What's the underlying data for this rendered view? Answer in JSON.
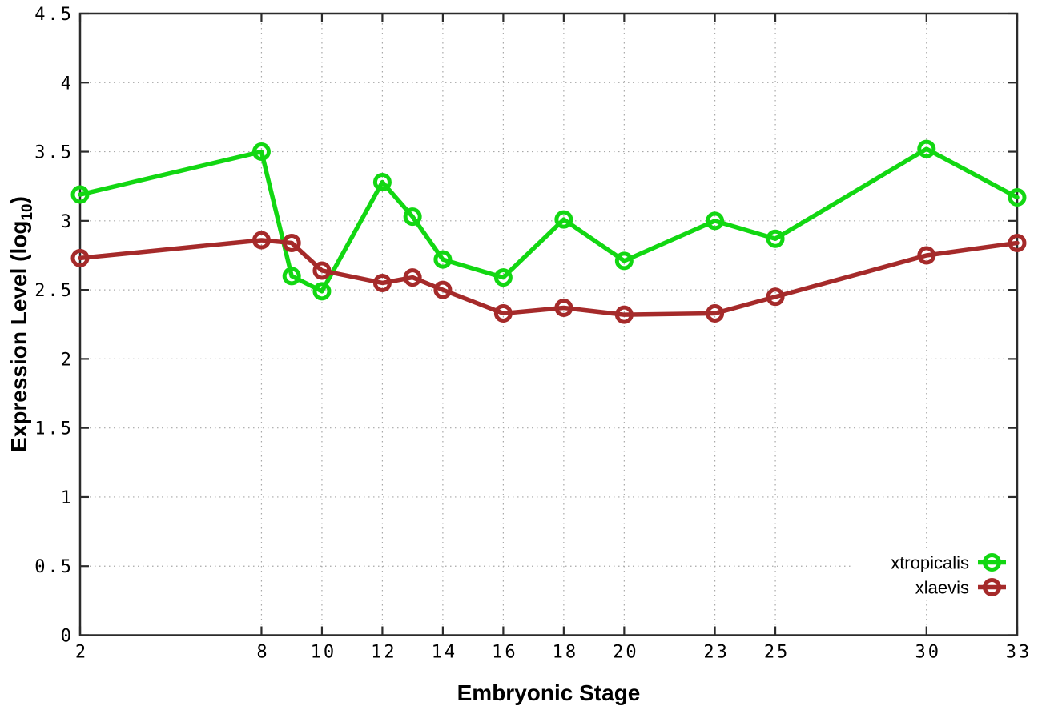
{
  "chart_data": {
    "type": "line",
    "title": "",
    "xlabel": "Embryonic Stage",
    "ylabel_prefix": "Expression Level (log",
    "ylabel_sub": "10",
    "ylabel_suffix": ")",
    "xlim": [
      2,
      33
    ],
    "ylim": [
      0,
      4.5
    ],
    "grid": true,
    "legend_position": "bottom-right-inside",
    "x": [
      2,
      8,
      9,
      10,
      12,
      13,
      14,
      16,
      18,
      20,
      23,
      25,
      30,
      33
    ],
    "xticks": {
      "values": [
        2,
        8,
        10,
        12,
        14,
        16,
        18,
        20,
        23,
        25,
        30,
        33
      ],
      "labels": [
        "2",
        "8",
        "10",
        "12",
        "14",
        "16",
        "18",
        "20",
        "23",
        "25",
        "30",
        "33"
      ]
    },
    "yticks": {
      "values": [
        0,
        0.5,
        1,
        1.5,
        2,
        2.5,
        3,
        3.5,
        4,
        4.5
      ],
      "labels": [
        "0",
        "0.5",
        "1",
        "1.5",
        "2",
        "2.5",
        "3",
        "3.5",
        "4",
        "4.5"
      ]
    },
    "series": [
      {
        "name": "xtropicalis",
        "color": "#12d712",
        "marker": "open-circle",
        "values": [
          3.19,
          3.5,
          2.6,
          2.49,
          3.28,
          3.03,
          2.72,
          2.59,
          3.01,
          2.71,
          3.0,
          2.87,
          3.52,
          3.17
        ]
      },
      {
        "name": "xlaevis",
        "color": "#a52a2a",
        "marker": "open-circle",
        "values": [
          2.73,
          2.86,
          2.84,
          2.64,
          2.55,
          2.59,
          2.5,
          2.33,
          2.37,
          2.32,
          2.33,
          2.45,
          2.75,
          2.84
        ]
      }
    ]
  }
}
